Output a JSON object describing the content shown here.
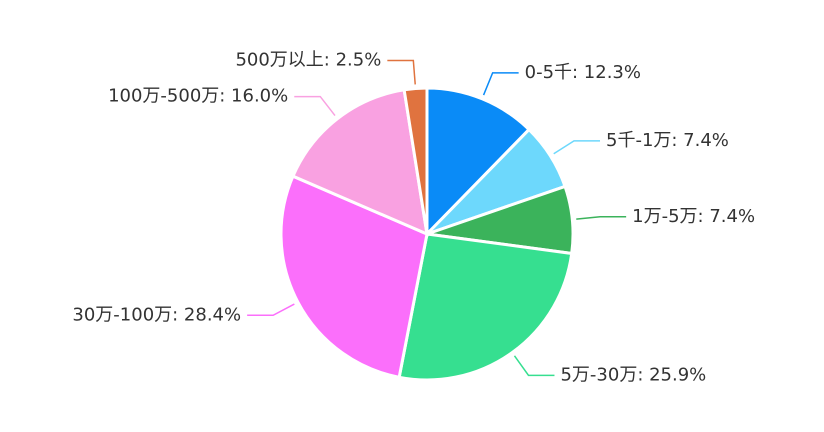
{
  "chart_data": {
    "type": "pie",
    "values": [
      12.3,
      7.4,
      7.4,
      25.9,
      28.4,
      16.0,
      2.5
    ],
    "value_labels": [
      "0-5千: 12.3%",
      "5千-1万: 7.4%",
      "1万-5万: 7.4%",
      "5万-30万: 25.9%",
      "30万-100万: 28.4%",
      "100万-500万: 16.0%",
      "500万以上: 2.5%"
    ],
    "colors": [
      "#0a8bf7",
      "#6dd8fc",
      "#3bb35b",
      "#36df90",
      "#fb6ffb",
      "#f9a1e1",
      "#e0733f"
    ]
  }
}
